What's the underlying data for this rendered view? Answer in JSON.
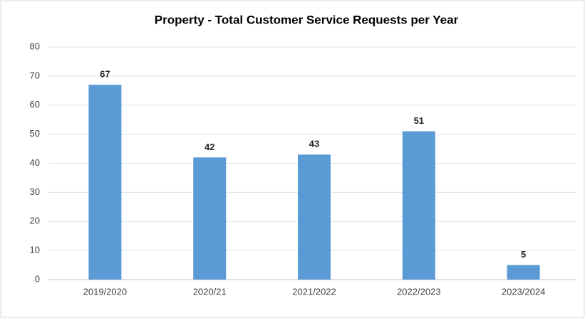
{
  "chart_data": {
    "type": "bar",
    "title": "Property - Total Customer Service Requests per Year",
    "categories": [
      "2019/2020",
      "2020/21",
      "2021/2022",
      "2022/2023",
      "2023/2024"
    ],
    "values": [
      67,
      42,
      43,
      51,
      5
    ],
    "color": "#5b9bd5",
    "ylim": [
      0,
      80
    ],
    "yticks": [
      0,
      10,
      20,
      30,
      40,
      50,
      60,
      70,
      80
    ],
    "grid": true,
    "data_labels": true
  }
}
